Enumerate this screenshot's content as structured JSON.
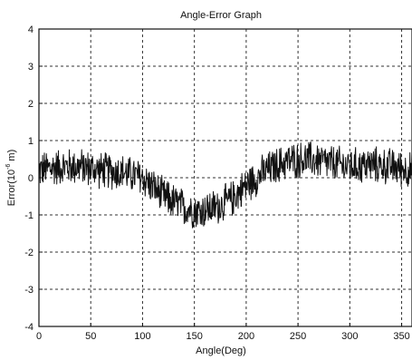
{
  "chart_data": {
    "type": "line",
    "title": "Angle-Error Graph",
    "xlabel": "Angle(Deg)",
    "ylabel": {
      "base": "Error(10",
      "exponent": "-6",
      "unit": " m)"
    },
    "xlim": [
      0,
      360
    ],
    "ylim": [
      -4,
      4
    ],
    "xticks": [
      0,
      50,
      100,
      150,
      200,
      250,
      300,
      350
    ],
    "yticks": [
      -4,
      -3,
      -2,
      -1,
      0,
      1,
      2,
      3,
      4
    ],
    "grid": true,
    "grid_style": "dashed",
    "series": [
      {
        "color": "#111111",
        "trend": {
          "x": [
            0,
            20,
            40,
            60,
            80,
            100,
            120,
            140,
            155,
            170,
            185,
            200,
            220,
            240,
            260,
            280,
            300,
            320,
            340,
            360
          ],
          "y": [
            0.2,
            0.3,
            0.3,
            0.2,
            0.15,
            0.0,
            -0.5,
            -0.8,
            -0.9,
            -0.8,
            -0.6,
            -0.2,
            0.2,
            0.45,
            0.5,
            0.4,
            0.3,
            0.35,
            0.3,
            0.2
          ]
        },
        "noise_amplitude": 0.55,
        "samples": 900
      }
    ]
  }
}
